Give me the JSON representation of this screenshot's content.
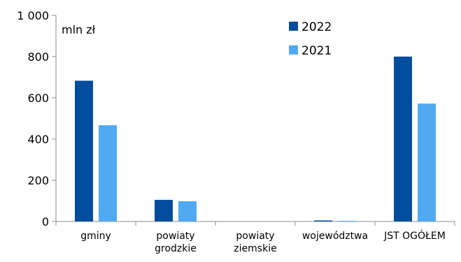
{
  "chart_data": {
    "type": "bar",
    "unit_label": "mln zł",
    "categories": [
      [
        "gminy"
      ],
      [
        "powiaty",
        "grodzkie"
      ],
      [
        "powiaty",
        "ziemskie"
      ],
      [
        "województwa"
      ],
      [
        "JST OGÓŁEM"
      ]
    ],
    "series": [
      {
        "name": "2022",
        "color": "#004d9d",
        "values": [
          683,
          105,
          0,
          5,
          800
        ]
      },
      {
        "name": "2021",
        "color": "#50aaf2",
        "values": [
          467,
          98,
          0,
          3,
          572
        ]
      }
    ],
    "y_ticks": [
      "1 000",
      "800",
      "600",
      "400",
      "200",
      "0"
    ],
    "y_tick_values": [
      1000,
      800,
      600,
      400,
      200,
      0
    ],
    "ylim": [
      0,
      1000
    ],
    "grid": false,
    "legend_position": "top-right"
  }
}
